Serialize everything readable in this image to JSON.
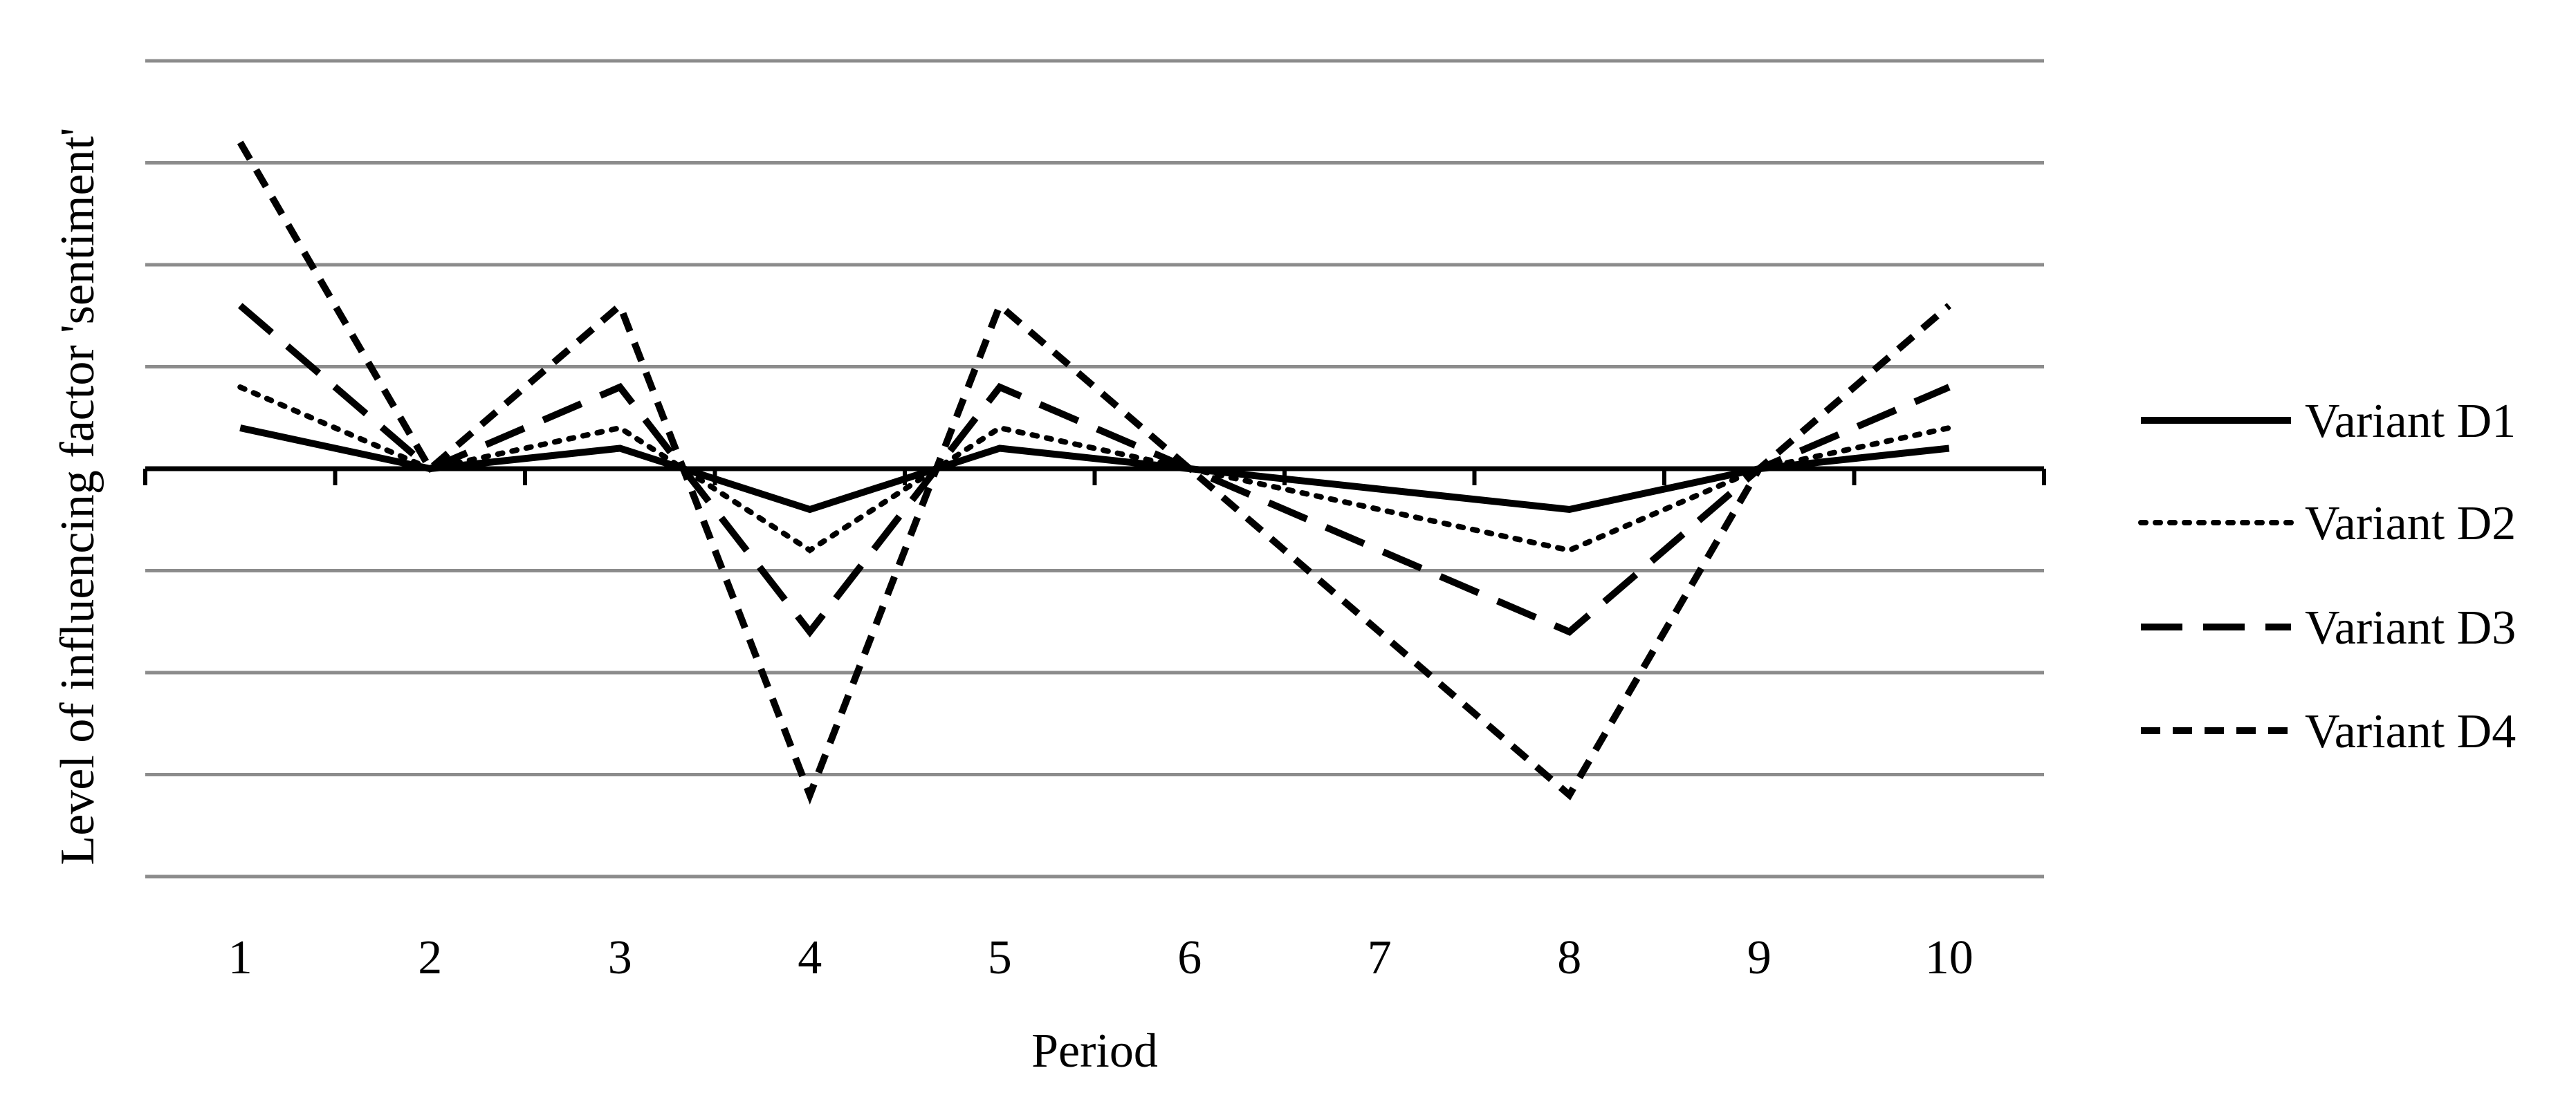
{
  "chart_data": {
    "type": "line",
    "title": "",
    "xlabel": "Period",
    "ylabel": "Level of influencing factor 'sentiment'",
    "categories": [
      "1",
      "2",
      "3",
      "4",
      "5",
      "6",
      "7",
      "8",
      "9",
      "10"
    ],
    "ylim": [
      -4,
      4
    ],
    "y_gridlines": [
      4,
      3,
      2,
      1,
      0,
      -1,
      -2,
      -3,
      -4
    ],
    "y_tick_labels_shown": false,
    "grid": true,
    "legend_position": "right",
    "series": [
      {
        "name": "Variant D1",
        "dash": "solid",
        "values": [
          0.4,
          0,
          0.2,
          -0.4,
          0.2,
          0,
          -0.2,
          -0.4,
          0,
          0.2
        ]
      },
      {
        "name": "Variant D2",
        "dash": "dotted",
        "values": [
          0.8,
          0,
          0.4,
          -0.8,
          0.4,
          0,
          -0.4,
          -0.8,
          0,
          0.4
        ]
      },
      {
        "name": "Variant D3",
        "dash": "long-dash",
        "values": [
          1.6,
          0,
          0.8,
          -1.6,
          0.8,
          0,
          -0.8,
          -1.6,
          0,
          0.8
        ]
      },
      {
        "name": "Variant D4",
        "dash": "short-dash",
        "values": [
          3.2,
          0,
          1.6,
          -3.2,
          1.6,
          0,
          -1.6,
          -3.2,
          0,
          1.6
        ]
      }
    ],
    "colors": {
      "gridline": "#8c8c8c",
      "series": "#000000",
      "axis": "#000000"
    }
  }
}
